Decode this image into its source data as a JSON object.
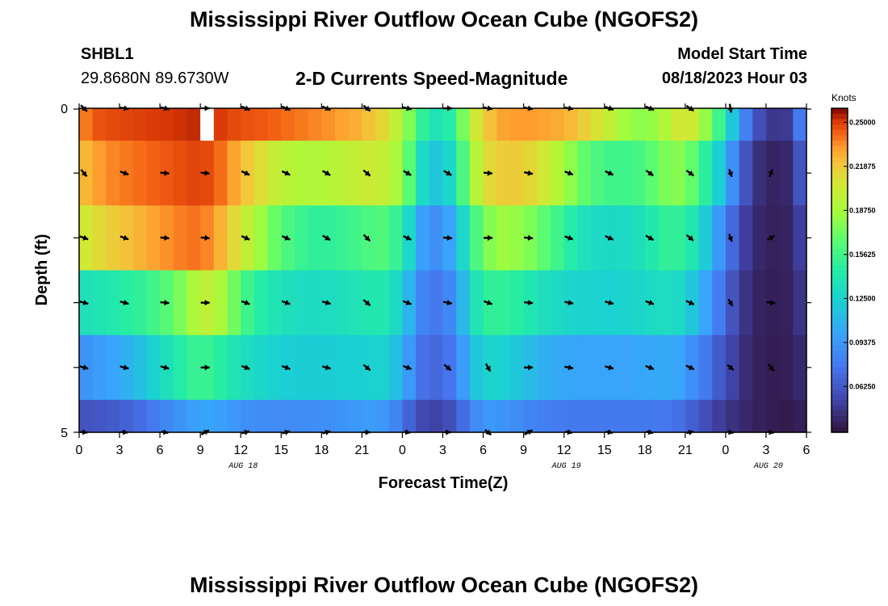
{
  "header": {
    "title": "Mississippi River Outflow Ocean Cube (NGOFS2)",
    "station_id": "SHBL1",
    "station_coords": "29.8680N  89.6730W",
    "subtitle": "2-D Currents Speed-Magnitude",
    "model_start_label": "Model Start Time",
    "model_start_value": "08/18/2023 Hour 03"
  },
  "footer": {
    "title_repeat": "Mississippi River Outflow Ocean Cube (NGOFS2)"
  },
  "colors": {
    "arrow": "#000000",
    "missing": "#ffffff"
  },
  "chart_data": {
    "type": "heatmap",
    "title": "",
    "xlabel": "Forecast Time(Z)",
    "ylabel": "Depth (ft)",
    "colorbar_label": "Knots",
    "x_hours": [
      0,
      1,
      2,
      3,
      4,
      5,
      6,
      7,
      8,
      9,
      10,
      11,
      12,
      13,
      14,
      15,
      16,
      17,
      18,
      19,
      20,
      21,
      22,
      23,
      24,
      25,
      26,
      27,
      28,
      29,
      30,
      31,
      32,
      33,
      34,
      35,
      36,
      37,
      38,
      39,
      40,
      41,
      42,
      43,
      44,
      45,
      46,
      47,
      48,
      49,
      50,
      51,
      52,
      53
    ],
    "x_tick_labels": [
      "0",
      "3",
      "6",
      "9",
      "12",
      "15",
      "18",
      "21",
      "0",
      "3",
      "6",
      "9",
      "12",
      "15",
      "18",
      "21",
      "0",
      "3",
      "6"
    ],
    "date_labels": [
      {
        "label": "AUG 18",
        "at_hour": 12
      },
      {
        "label": "AUG 19",
        "at_hour": 36
      },
      {
        "label": "AUG 20",
        "at_hour": 51
      }
    ],
    "depth_levels_ft": [
      0,
      1,
      2,
      3,
      4,
      5
    ],
    "y_tick_labels": [
      "0",
      "5"
    ],
    "ylim": [
      0,
      5
    ],
    "xlim": [
      0,
      54
    ],
    "colorbar_ticks": [
      "0.25000",
      "0.21875",
      "0.18750",
      "0.15625",
      "0.12500",
      "0.09375",
      "0.06250"
    ],
    "color_range": [
      0.03,
      0.26
    ],
    "grid": false,
    "missing_cells": [
      {
        "hour": 9,
        "level": 0
      }
    ],
    "speed_knots": [
      [
        0.238,
        0.245,
        0.247,
        0.248,
        0.249,
        0.25,
        0.251,
        0.252,
        0.253,
        0.253,
        0.25,
        0.247,
        0.245,
        0.244,
        0.242,
        0.24,
        0.238,
        0.236,
        0.234,
        0.23,
        0.227,
        0.222,
        0.214,
        0.198,
        0.176,
        0.15,
        0.137,
        0.145,
        0.174,
        0.205,
        0.222,
        0.23,
        0.232,
        0.232,
        0.23,
        0.228,
        0.224,
        0.217,
        0.207,
        0.197,
        0.186,
        0.18,
        0.182,
        0.192,
        0.204,
        0.203,
        0.182,
        0.155,
        0.118,
        0.082,
        0.058,
        0.047,
        0.048,
        0.078
      ],
      [
        0.225,
        0.232,
        0.236,
        0.238,
        0.24,
        0.242,
        0.244,
        0.246,
        0.248,
        0.247,
        0.24,
        0.23,
        0.22,
        0.21,
        0.2,
        0.195,
        0.192,
        0.192,
        0.193,
        0.196,
        0.199,
        0.201,
        0.2,
        0.19,
        0.165,
        0.13,
        0.118,
        0.128,
        0.16,
        0.195,
        0.212,
        0.218,
        0.218,
        0.214,
        0.205,
        0.193,
        0.18,
        0.168,
        0.16,
        0.156,
        0.155,
        0.158,
        0.166,
        0.175,
        0.178,
        0.168,
        0.148,
        0.122,
        0.09,
        0.06,
        0.043,
        0.038,
        0.04,
        0.06
      ],
      [
        0.205,
        0.212,
        0.218,
        0.222,
        0.226,
        0.23,
        0.234,
        0.237,
        0.239,
        0.236,
        0.226,
        0.212,
        0.198,
        0.184,
        0.17,
        0.16,
        0.153,
        0.15,
        0.15,
        0.152,
        0.156,
        0.16,
        0.162,
        0.152,
        0.128,
        0.098,
        0.09,
        0.1,
        0.128,
        0.16,
        0.178,
        0.184,
        0.182,
        0.176,
        0.166,
        0.155,
        0.144,
        0.135,
        0.13,
        0.129,
        0.13,
        0.134,
        0.142,
        0.15,
        0.15,
        0.14,
        0.12,
        0.095,
        0.07,
        0.05,
        0.04,
        0.037,
        0.038,
        0.05
      ],
      [
        0.135,
        0.138,
        0.142,
        0.146,
        0.15,
        0.156,
        0.164,
        0.175,
        0.19,
        0.197,
        0.19,
        0.172,
        0.155,
        0.145,
        0.138,
        0.134,
        0.132,
        0.131,
        0.132,
        0.134,
        0.137,
        0.14,
        0.141,
        0.13,
        0.108,
        0.084,
        0.078,
        0.086,
        0.11,
        0.138,
        0.15,
        0.15,
        0.146,
        0.14,
        0.134,
        0.13,
        0.127,
        0.125,
        0.124,
        0.124,
        0.125,
        0.127,
        0.13,
        0.132,
        0.13,
        0.118,
        0.1,
        0.08,
        0.06,
        0.045,
        0.038,
        0.036,
        0.037,
        0.045
      ],
      [
        0.092,
        0.096,
        0.1,
        0.106,
        0.114,
        0.124,
        0.134,
        0.144,
        0.152,
        0.152,
        0.146,
        0.138,
        0.132,
        0.128,
        0.124,
        0.122,
        0.121,
        0.121,
        0.121,
        0.122,
        0.123,
        0.124,
        0.124,
        0.114,
        0.094,
        0.074,
        0.07,
        0.076,
        0.096,
        0.118,
        0.126,
        0.124,
        0.118,
        0.112,
        0.106,
        0.103,
        0.101,
        0.1,
        0.1,
        0.1,
        0.1,
        0.101,
        0.102,
        0.103,
        0.1,
        0.09,
        0.078,
        0.064,
        0.052,
        0.042,
        0.037,
        0.035,
        0.036,
        0.04
      ],
      [
        0.06,
        0.062,
        0.064,
        0.067,
        0.072,
        0.078,
        0.085,
        0.092,
        0.098,
        0.1,
        0.098,
        0.094,
        0.09,
        0.088,
        0.087,
        0.087,
        0.088,
        0.089,
        0.09,
        0.092,
        0.094,
        0.096,
        0.094,
        0.084,
        0.068,
        0.055,
        0.052,
        0.058,
        0.072,
        0.088,
        0.094,
        0.092,
        0.088,
        0.084,
        0.081,
        0.079,
        0.078,
        0.078,
        0.078,
        0.078,
        0.078,
        0.078,
        0.078,
        0.077,
        0.073,
        0.066,
        0.058,
        0.05,
        0.044,
        0.04,
        0.037,
        0.035,
        0.034,
        0.036
      ]
    ],
    "arrow_hours": [
      0,
      3,
      6,
      9,
      12,
      15,
      18,
      21,
      24,
      27,
      30,
      33,
      36,
      39,
      42,
      45,
      48,
      51
    ],
    "arrow_directions_deg": [
      [
        135,
        100,
        105,
        90,
        115,
        115,
        115,
        130,
        105,
        90,
        100,
        100,
        100,
        110,
        115,
        125,
        170,
        null
      ],
      [
        140,
        110,
        95,
        95,
        115,
        115,
        120,
        130,
        120,
        120,
        95,
        100,
        110,
        115,
        125,
        125,
        160,
        20
      ],
      [
        110,
        110,
        95,
        95,
        115,
        115,
        120,
        135,
        115,
        95,
        90,
        95,
        110,
        115,
        120,
        130,
        160,
        60
      ],
      [
        105,
        105,
        95,
        90,
        110,
        110,
        105,
        130,
        110,
        100,
        110,
        95,
        100,
        105,
        110,
        115,
        150,
        95
      ],
      [
        105,
        105,
        105,
        90,
        110,
        110,
        105,
        130,
        110,
        130,
        150,
        90,
        100,
        105,
        110,
        115,
        130,
        140
      ],
      [
        95,
        95,
        100,
        60,
        75,
        75,
        75,
        90,
        100,
        90,
        130,
        60,
        100,
        100,
        100,
        75,
        100,
        100
      ]
    ],
    "arrow_lengths": [
      [
        1.0,
        1.0,
        1.0,
        1.0,
        1.0,
        1.0,
        1.0,
        1.0,
        1.0,
        1.0,
        1.0,
        1.0,
        1.0,
        1.0,
        1.0,
        1.0,
        1.0,
        0
      ],
      [
        1.0,
        1.0,
        1.0,
        1.0,
        1.0,
        1.0,
        1.0,
        1.0,
        1.0,
        1.0,
        1.0,
        1.0,
        1.0,
        1.0,
        1.0,
        1.0,
        0.9,
        0.9
      ],
      [
        1.0,
        1.0,
        1.0,
        1.0,
        1.0,
        1.0,
        1.0,
        1.0,
        1.0,
        1.0,
        1.0,
        1.0,
        1.0,
        1.0,
        1.0,
        1.0,
        0.9,
        0.9
      ],
      [
        1.0,
        1.0,
        1.0,
        1.0,
        1.0,
        1.0,
        1.0,
        1.0,
        1.0,
        1.0,
        1.0,
        1.0,
        1.0,
        1.0,
        1.0,
        1.0,
        0.9,
        1.0
      ],
      [
        1.0,
        1.0,
        1.0,
        1.0,
        1.0,
        1.0,
        1.0,
        1.0,
        1.0,
        1.0,
        1.0,
        1.0,
        1.0,
        1.0,
        1.0,
        1.0,
        0.9,
        1.0
      ],
      [
        0.8,
        0.8,
        0.8,
        1.0,
        0.9,
        0.9,
        0.9,
        0.8,
        0.7,
        0.7,
        0.9,
        1.0,
        0.8,
        0.8,
        0.8,
        0.8,
        0.7,
        0.7
      ]
    ]
  }
}
